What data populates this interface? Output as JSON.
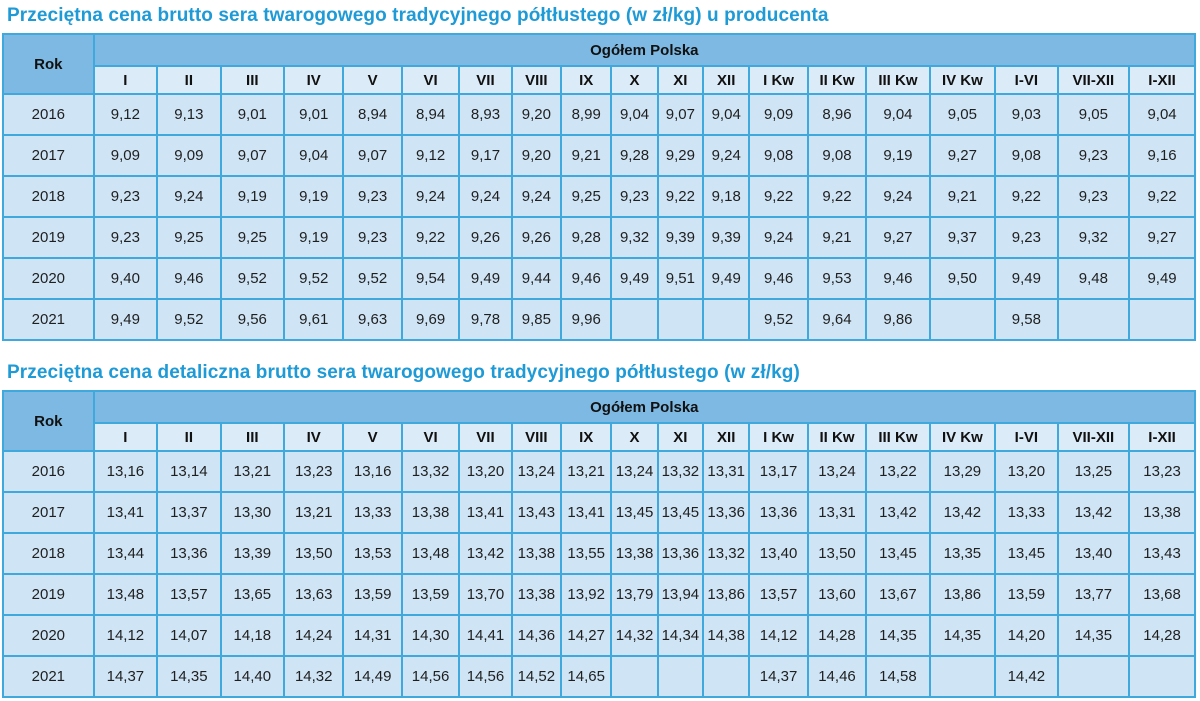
{
  "colors": {
    "title": "#1E9AD6",
    "header_bg": "#7DB9E2",
    "subheader_bg": "#DCEBF8",
    "cell_bg": "#CFE4F5",
    "border": "#3FA8DC",
    "outer_border": "#2B86BD",
    "text": "#1F1F1F"
  },
  "tables": [
    {
      "title": "Przeciętna cena brutto sera twarogowego tradycyjnego półtłustego (w zł/kg) u producenta",
      "rok_label": "Rok",
      "group_label": "Ogółem Polska",
      "columns": [
        "I",
        "II",
        "III",
        "IV",
        "V",
        "VI",
        "VII",
        "VIII",
        "IX",
        "X",
        "XI",
        "XII",
        "I Kw",
        "II Kw",
        "III Kw",
        "IV Kw",
        "I-VI",
        "VII-XII",
        "I-XII"
      ],
      "rows": [
        {
          "year": "2016",
          "values": [
            "9,12",
            "9,13",
            "9,01",
            "9,01",
            "8,94",
            "8,94",
            "8,93",
            "9,20",
            "8,99",
            "9,04",
            "9,07",
            "9,04",
            "9,09",
            "8,96",
            "9,04",
            "9,05",
            "9,03",
            "9,05",
            "9,04"
          ]
        },
        {
          "year": "2017",
          "values": [
            "9,09",
            "9,09",
            "9,07",
            "9,04",
            "9,07",
            "9,12",
            "9,17",
            "9,20",
            "9,21",
            "9,28",
            "9,29",
            "9,24",
            "9,08",
            "9,08",
            "9,19",
            "9,27",
            "9,08",
            "9,23",
            "9,16"
          ]
        },
        {
          "year": "2018",
          "values": [
            "9,23",
            "9,24",
            "9,19",
            "9,19",
            "9,23",
            "9,24",
            "9,24",
            "9,24",
            "9,25",
            "9,23",
            "9,22",
            "9,18",
            "9,22",
            "9,22",
            "9,24",
            "9,21",
            "9,22",
            "9,23",
            "9,22"
          ]
        },
        {
          "year": "2019",
          "values": [
            "9,23",
            "9,25",
            "9,25",
            "9,19",
            "9,23",
            "9,22",
            "9,26",
            "9,26",
            "9,28",
            "9,32",
            "9,39",
            "9,39",
            "9,24",
            "9,21",
            "9,27",
            "9,37",
            "9,23",
            "9,32",
            "9,27"
          ]
        },
        {
          "year": "2020",
          "values": [
            "9,40",
            "9,46",
            "9,52",
            "9,52",
            "9,52",
            "9,54",
            "9,49",
            "9,44",
            "9,46",
            "9,49",
            "9,51",
            "9,49",
            "9,46",
            "9,53",
            "9,46",
            "9,50",
            "9,49",
            "9,48",
            "9,49"
          ]
        },
        {
          "year": "2021",
          "values": [
            "9,49",
            "9,52",
            "9,56",
            "9,61",
            "9,63",
            "9,69",
            "9,78",
            "9,85",
            "9,96",
            "",
            "",
            "",
            "9,52",
            "9,64",
            "9,86",
            "",
            "9,58",
            "",
            ""
          ]
        }
      ]
    },
    {
      "title": "Przeciętna cena detaliczna brutto sera twarogowego tradycyjnego półtłustego (w zł/kg)",
      "rok_label": "Rok",
      "group_label": "Ogółem Polska",
      "columns": [
        "I",
        "II",
        "III",
        "IV",
        "V",
        "VI",
        "VII",
        "VIII",
        "IX",
        "X",
        "XI",
        "XII",
        "I Kw",
        "II Kw",
        "III Kw",
        "IV Kw",
        "I-VI",
        "VII-XII",
        "I-XII"
      ],
      "rows": [
        {
          "year": "2016",
          "values": [
            "13,16",
            "13,14",
            "13,21",
            "13,23",
            "13,16",
            "13,32",
            "13,20",
            "13,24",
            "13,21",
            "13,24",
            "13,32",
            "13,31",
            "13,17",
            "13,24",
            "13,22",
            "13,29",
            "13,20",
            "13,25",
            "13,23"
          ]
        },
        {
          "year": "2017",
          "values": [
            "13,41",
            "13,37",
            "13,30",
            "13,21",
            "13,33",
            "13,38",
            "13,41",
            "13,43",
            "13,41",
            "13,45",
            "13,45",
            "13,36",
            "13,36",
            "13,31",
            "13,42",
            "13,42",
            "13,33",
            "13,42",
            "13,38"
          ]
        },
        {
          "year": "2018",
          "values": [
            "13,44",
            "13,36",
            "13,39",
            "13,50",
            "13,53",
            "13,48",
            "13,42",
            "13,38",
            "13,55",
            "13,38",
            "13,36",
            "13,32",
            "13,40",
            "13,50",
            "13,45",
            "13,35",
            "13,45",
            "13,40",
            "13,43"
          ]
        },
        {
          "year": "2019",
          "values": [
            "13,48",
            "13,57",
            "13,65",
            "13,63",
            "13,59",
            "13,59",
            "13,70",
            "13,38",
            "13,92",
            "13,79",
            "13,94",
            "13,86",
            "13,57",
            "13,60",
            "13,67",
            "13,86",
            "13,59",
            "13,77",
            "13,68"
          ]
        },
        {
          "year": "2020",
          "values": [
            "14,12",
            "14,07",
            "14,18",
            "14,24",
            "14,31",
            "14,30",
            "14,41",
            "14,36",
            "14,27",
            "14,32",
            "14,34",
            "14,38",
            "14,12",
            "14,28",
            "14,35",
            "14,35",
            "14,20",
            "14,35",
            "14,28"
          ]
        },
        {
          "year": "2021",
          "values": [
            "14,37",
            "14,35",
            "14,40",
            "14,32",
            "14,49",
            "14,56",
            "14,56",
            "14,52",
            "14,65",
            "",
            "",
            "",
            "14,37",
            "14,46",
            "14,58",
            "",
            "14,42",
            "",
            ""
          ]
        }
      ]
    }
  ]
}
